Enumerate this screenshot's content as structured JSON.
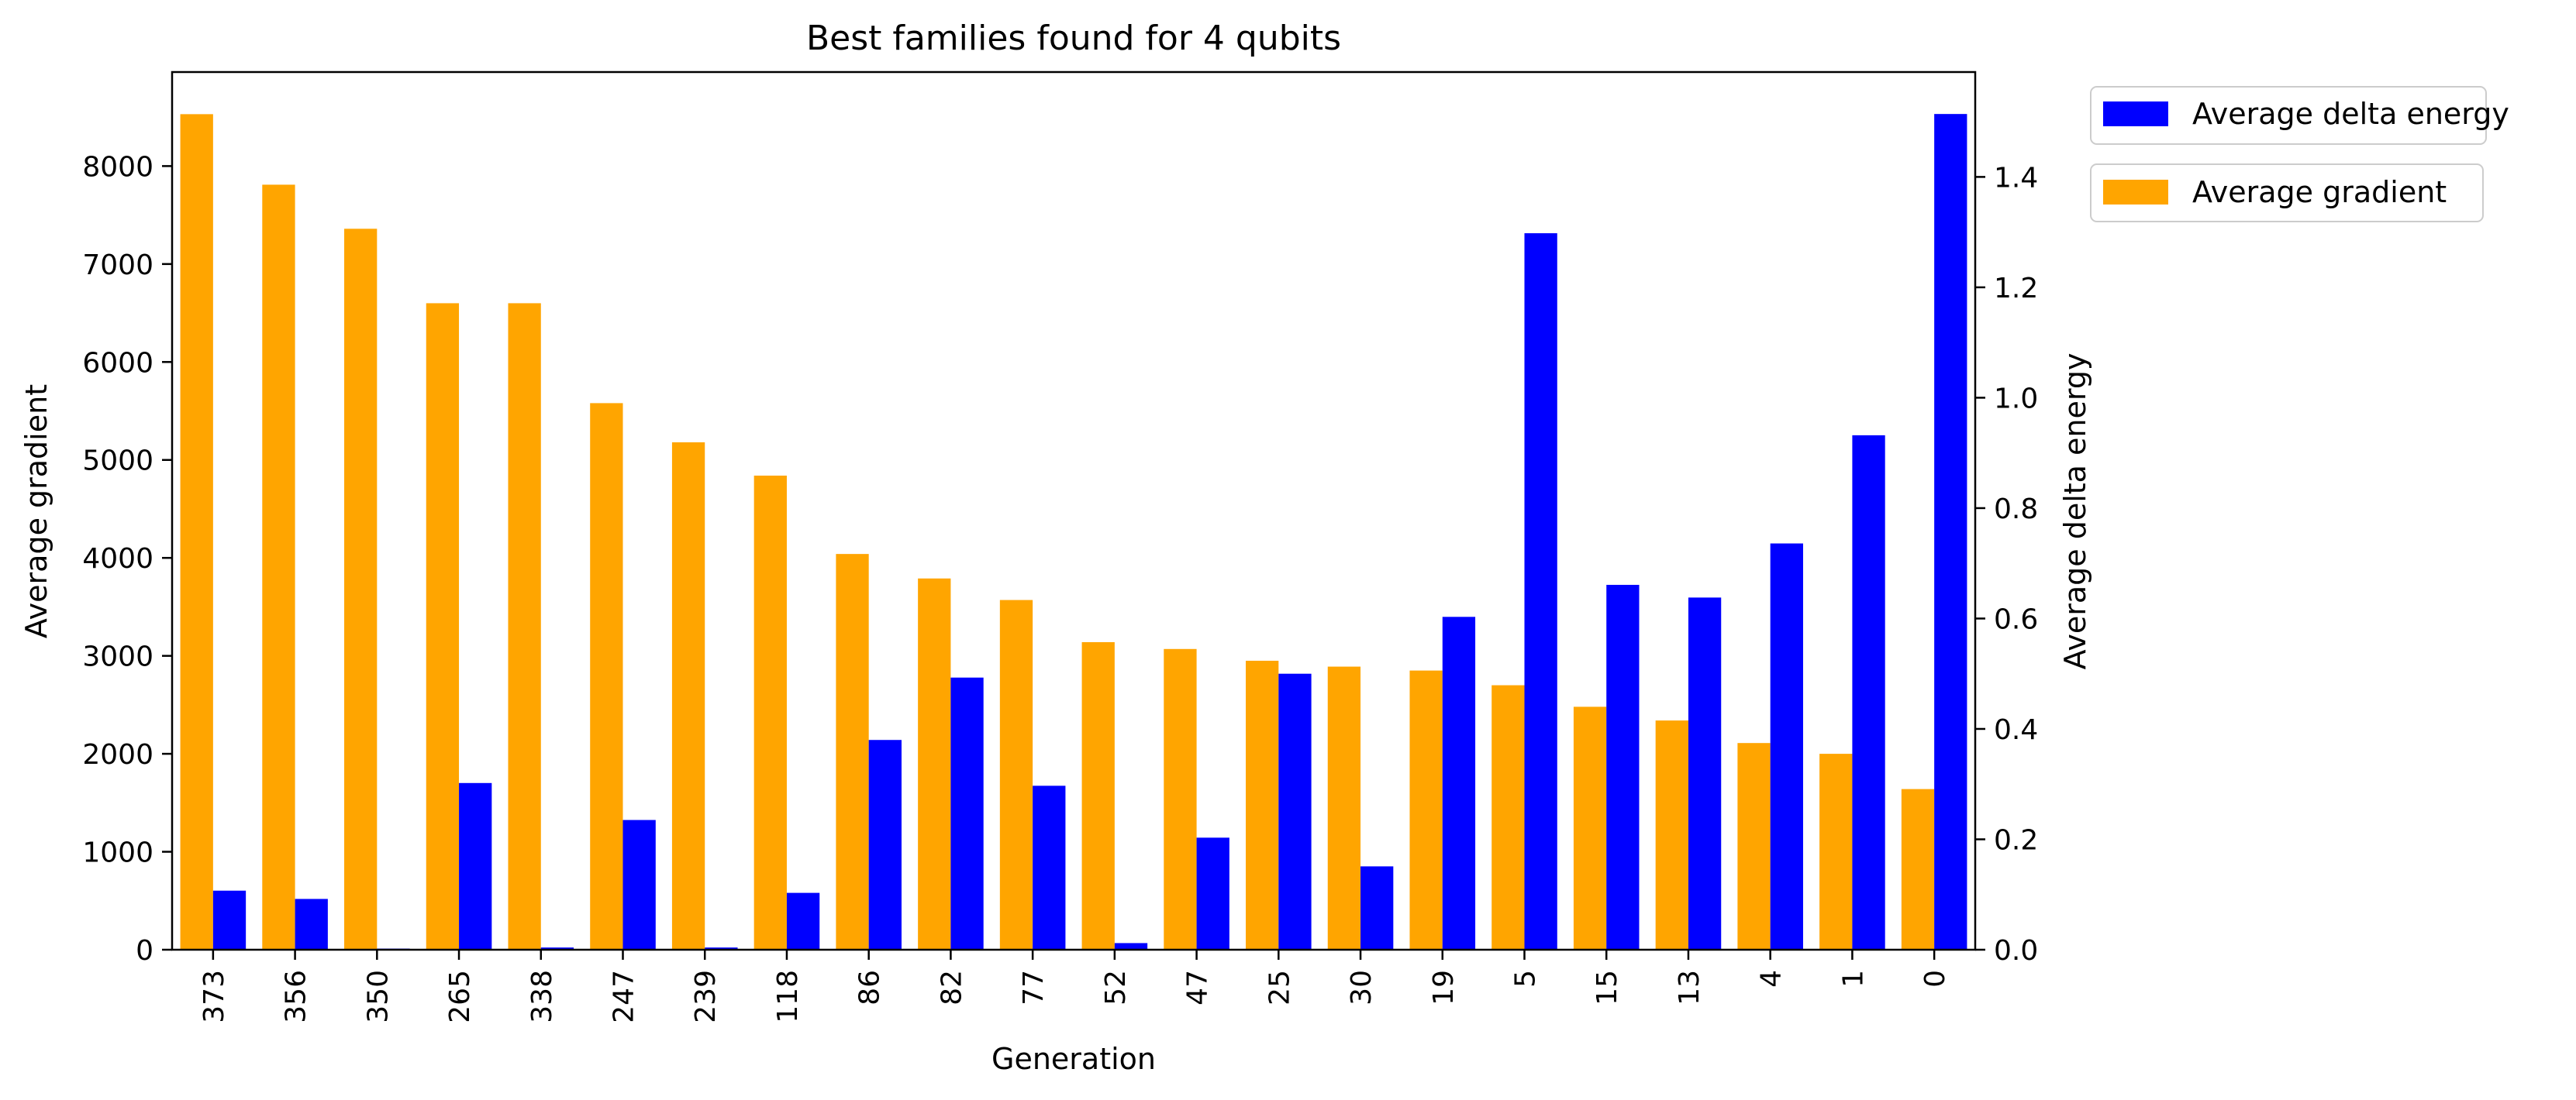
{
  "chart_data": {
    "type": "bar",
    "title": "Best families found for 4 qubits",
    "xlabel": "Generation",
    "ylabel": "Average gradient",
    "y2label": "Average delta energy",
    "categories": [
      "373",
      "356",
      "350",
      "265",
      "338",
      "247",
      "239",
      "118",
      "86",
      "82",
      "77",
      "52",
      "47",
      "25",
      "30",
      "19",
      "5",
      "15",
      "13",
      "4",
      "1",
      "0"
    ],
    "series": [
      {
        "name": "Average gradient",
        "axis": "left",
        "color": "#FFA500",
        "values": [
          8530,
          7810,
          7360,
          6600,
          6600,
          5580,
          5180,
          4840,
          4040,
          3790,
          3570,
          3140,
          3070,
          2950,
          2890,
          2850,
          2700,
          2480,
          2340,
          2110,
          2000,
          1640
        ]
      },
      {
        "name": "Average delta energy",
        "axis": "right",
        "color": "#0000FF",
        "values": [
          0.107,
          0.092,
          0.002,
          0.302,
          0.004,
          0.235,
          0.004,
          0.103,
          0.38,
          0.493,
          0.297,
          0.012,
          0.203,
          0.5,
          0.151,
          0.603,
          1.298,
          0.661,
          0.638,
          0.736,
          0.932,
          1.514
        ]
      }
    ],
    "ylim": [
      0,
      8960
    ],
    "y2lim": [
      0,
      1.59
    ],
    "yticks": [
      0,
      1000,
      2000,
      3000,
      4000,
      5000,
      6000,
      7000,
      8000
    ],
    "y2ticks": [
      "0.0",
      "0.2",
      "0.4",
      "0.6",
      "0.8",
      "1.0",
      "1.2",
      "1.4"
    ],
    "legend": {
      "placement": "outside-top-right",
      "items": [
        "Average delta energy",
        "Average gradient"
      ]
    },
    "grid": false
  }
}
